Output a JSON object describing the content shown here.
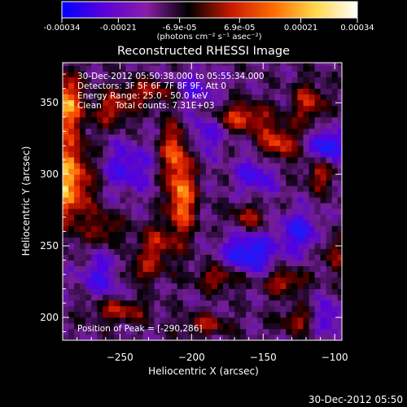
{
  "chart_data": {
    "type": "heatmap",
    "title": "Reconstructed RHESSI Image",
    "xlabel": "Heliocentric X (arcsec)",
    "ylabel": "Heliocentric Y (arcsec)",
    "xlim": [
      -290,
      -95
    ],
    "ylim": [
      184,
      378
    ],
    "x_ticks": [
      -250,
      -200,
      -150,
      -100
    ],
    "y_ticks": [
      200,
      250,
      300,
      350
    ],
    "grid": false,
    "colorbar": {
      "min": -0.00034,
      "max": 0.00034,
      "tick_labels": [
        "-0.00034",
        "-0.00021",
        "-6.9e-05",
        "6.9e-05",
        "0.00021",
        "0.00034"
      ],
      "unit_label": "(photons cm⁻² s⁻¹ asec⁻²)",
      "colors": [
        "#0000ff",
        "#5a00d8",
        "#8a1ea8",
        "#000000",
        "#c81800",
        "#ff6a00",
        "#ffd84a",
        "#ffffff"
      ]
    },
    "annotations": [
      "30-Dec-2012 05:50:38.000 to 05:55:34.000",
      "Detectors: 3F 5F 6F 7F 8F 9F, Att 0",
      "Energy Range: 25.0 - 50.0 keV",
      "Clean     Total counts: 7.31E+03"
    ],
    "peak_label": "Position of Peak = [-290,286]",
    "peak": [
      -290,
      286
    ],
    "hot_spots": [
      {
        "x": -287,
        "y": 295,
        "value": 1.0,
        "sx": 12,
        "sy": 22
      },
      {
        "x": -288,
        "y": 350,
        "value": 0.95,
        "sx": 8,
        "sy": 14
      },
      {
        "x": -255,
        "y": 345,
        "value": 0.55,
        "sx": 10,
        "sy": 8
      },
      {
        "x": -228,
        "y": 358,
        "value": 0.55,
        "sx": 16,
        "sy": 6
      },
      {
        "x": -207,
        "y": 283,
        "value": 0.9,
        "sx": 7,
        "sy": 18
      },
      {
        "x": -212,
        "y": 318,
        "value": 0.7,
        "sx": 7,
        "sy": 14
      },
      {
        "x": -225,
        "y": 250,
        "value": 0.55,
        "sx": 10,
        "sy": 10
      },
      {
        "x": -240,
        "y": 232,
        "value": 0.5,
        "sx": 12,
        "sy": 6
      },
      {
        "x": -260,
        "y": 262,
        "value": 0.45,
        "sx": 8,
        "sy": 8
      },
      {
        "x": -165,
        "y": 340,
        "value": 0.7,
        "sx": 14,
        "sy": 7
      },
      {
        "x": -140,
        "y": 322,
        "value": 0.7,
        "sx": 10,
        "sy": 9
      },
      {
        "x": -118,
        "y": 350,
        "value": 0.6,
        "sx": 8,
        "sy": 10
      },
      {
        "x": -110,
        "y": 300,
        "value": 0.55,
        "sx": 7,
        "sy": 8
      },
      {
        "x": -160,
        "y": 270,
        "value": 0.5,
        "sx": 9,
        "sy": 7
      },
      {
        "x": -180,
        "y": 228,
        "value": 0.55,
        "sx": 12,
        "sy": 6
      },
      {
        "x": -135,
        "y": 225,
        "value": 0.6,
        "sx": 10,
        "sy": 6
      },
      {
        "x": -250,
        "y": 205,
        "value": 0.55,
        "sx": 14,
        "sy": 6
      },
      {
        "x": -190,
        "y": 195,
        "value": 0.5,
        "sx": 12,
        "sy": 5
      },
      {
        "x": -125,
        "y": 198,
        "value": 0.5,
        "sx": 10,
        "sy": 6
      },
      {
        "x": -100,
        "y": 245,
        "value": 0.45,
        "sx": 6,
        "sy": 10
      }
    ],
    "cold_spots": [
      {
        "x": -105,
        "y": 320,
        "value": -0.8,
        "sx": 8,
        "sy": 8
      },
      {
        "x": -160,
        "y": 245,
        "value": -0.8,
        "sx": 12,
        "sy": 10
      },
      {
        "x": -125,
        "y": 260,
        "value": -0.6,
        "sx": 10,
        "sy": 10
      },
      {
        "x": -155,
        "y": 300,
        "value": -0.5,
        "sx": 10,
        "sy": 10
      },
      {
        "x": -245,
        "y": 305,
        "value": -0.5,
        "sx": 12,
        "sy": 12
      },
      {
        "x": -260,
        "y": 230,
        "value": -0.55,
        "sx": 12,
        "sy": 10
      },
      {
        "x": -190,
        "y": 330,
        "value": -0.45,
        "sx": 10,
        "sy": 10
      },
      {
        "x": -200,
        "y": 360,
        "value": -0.45,
        "sx": 12,
        "sy": 8
      },
      {
        "x": -105,
        "y": 200,
        "value": -0.5,
        "sx": 8,
        "sy": 8
      }
    ]
  },
  "footer_date": "30-Dec-2012 05:50"
}
